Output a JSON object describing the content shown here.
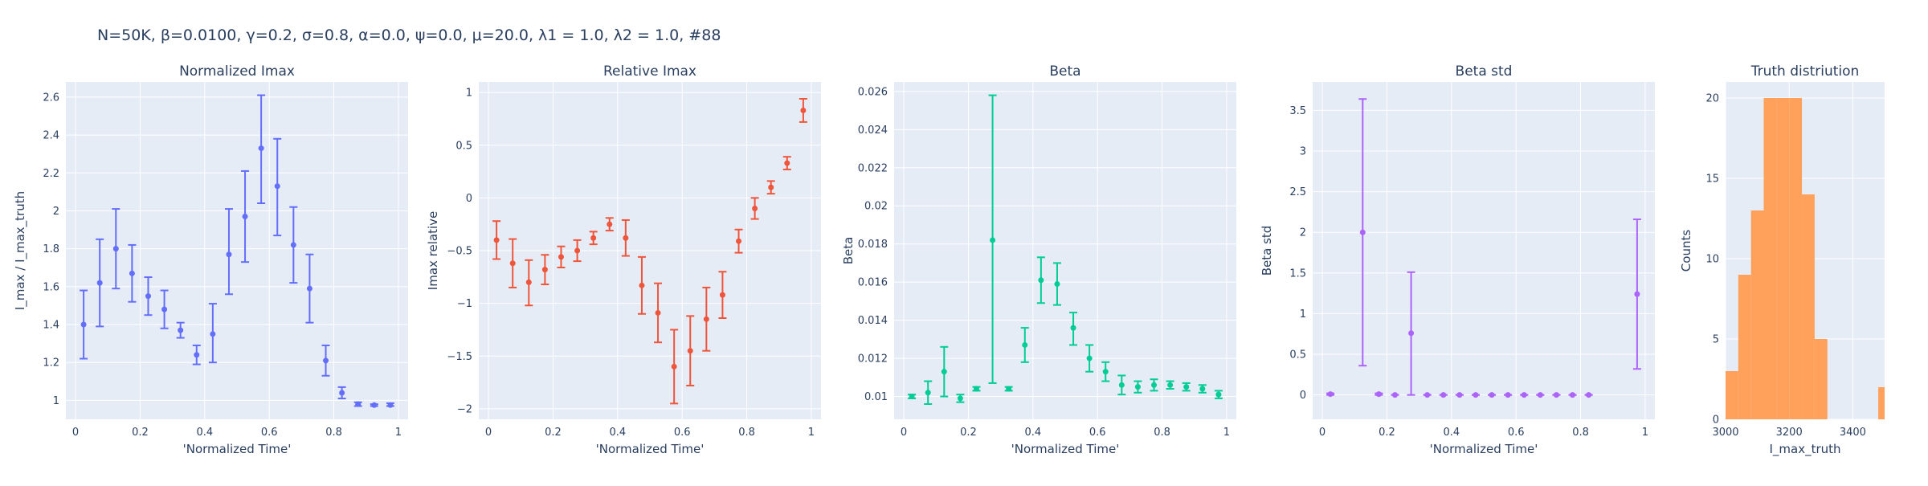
{
  "suptitle": "N=50K, β=0.0100, γ=0.2, σ=0.8,  α=0.0, ψ=0.0, μ=20.0, λ1 = 1.0, λ2 = 1.0, #88",
  "chart_data": [
    {
      "type": "scatter",
      "title": "Normalized Imax",
      "xlabel": "'Normalized Time'",
      "ylabel": "I_max / I_max_truth",
      "color": "#636efa",
      "xlim": [
        -0.03,
        1.03
      ],
      "ylim": [
        0.9,
        2.68
      ],
      "xticks": [
        0,
        0.2,
        0.4,
        0.6,
        0.8,
        1
      ],
      "xtick_labels": [
        "0",
        "0.2",
        "0.4",
        "0.6",
        "0.8",
        "1"
      ],
      "yticks": [
        1,
        1.2,
        1.4,
        1.6,
        1.8,
        2,
        2.2,
        2.4,
        2.6
      ],
      "ytick_labels": [
        "1",
        "1.2",
        "1.4",
        "1.6",
        "1.8",
        "2",
        "2.2",
        "2.4",
        "2.6"
      ],
      "x": [
        0.025,
        0.075,
        0.125,
        0.175,
        0.225,
        0.275,
        0.325,
        0.375,
        0.425,
        0.475,
        0.525,
        0.575,
        0.625,
        0.675,
        0.725,
        0.775,
        0.825,
        0.875,
        0.925,
        0.975
      ],
      "y": [
        1.4,
        1.62,
        1.8,
        1.67,
        1.55,
        1.48,
        1.37,
        1.24,
        1.35,
        1.77,
        1.97,
        2.33,
        2.13,
        1.82,
        1.59,
        1.21,
        1.04,
        0.98,
        0.975,
        0.975
      ],
      "err_low": [
        1.22,
        1.39,
        1.59,
        1.52,
        1.45,
        1.38,
        1.33,
        1.19,
        1.2,
        1.56,
        1.73,
        2.04,
        1.87,
        1.62,
        1.41,
        1.13,
        1.01,
        0.97,
        0.97,
        0.97
      ],
      "err_high": [
        1.58,
        1.85,
        2.01,
        1.82,
        1.65,
        1.58,
        1.41,
        1.29,
        1.51,
        2.01,
        2.21,
        2.61,
        2.38,
        2.02,
        1.77,
        1.29,
        1.07,
        0.99,
        0.98,
        0.985
      ]
    },
    {
      "type": "scatter",
      "title": "Relative Imax",
      "xlabel": "'Normalized Time'",
      "ylabel": "Imax relative",
      "color": "#ef553b",
      "xlim": [
        -0.03,
        1.03
      ],
      "ylim": [
        -2.1,
        1.1
      ],
      "xticks": [
        0,
        0.2,
        0.4,
        0.6,
        0.8,
        1
      ],
      "xtick_labels": [
        "0",
        "0.2",
        "0.4",
        "0.6",
        "0.8",
        "1"
      ],
      "yticks": [
        -2,
        -1.5,
        -1,
        -0.5,
        0,
        0.5,
        1
      ],
      "ytick_labels": [
        "−2",
        "−1.5",
        "−1",
        "−0.5",
        "0",
        "0.5",
        "1"
      ],
      "x": [
        0.025,
        0.075,
        0.125,
        0.175,
        0.225,
        0.275,
        0.325,
        0.375,
        0.425,
        0.475,
        0.525,
        0.575,
        0.625,
        0.675,
        0.725,
        0.775,
        0.825,
        0.875,
        0.925,
        0.975
      ],
      "y": [
        -0.4,
        -0.62,
        -0.8,
        -0.68,
        -0.56,
        -0.5,
        -0.38,
        -0.25,
        -0.38,
        -0.83,
        -1.09,
        -1.6,
        -1.45,
        -1.15,
        -0.92,
        -0.41,
        -0.1,
        0.1,
        0.33,
        0.83
      ],
      "err_low": [
        -0.58,
        -0.85,
        -1.02,
        -0.82,
        -0.66,
        -0.6,
        -0.44,
        -0.31,
        -0.55,
        -1.1,
        -1.37,
        -1.95,
        -1.78,
        -1.45,
        -1.14,
        -0.52,
        -0.2,
        0.04,
        0.27,
        0.72
      ],
      "err_high": [
        -0.22,
        -0.39,
        -0.59,
        -0.54,
        -0.46,
        -0.4,
        -0.32,
        -0.19,
        -0.21,
        -0.56,
        -0.81,
        -1.25,
        -1.12,
        -0.85,
        -0.7,
        -0.3,
        0.0,
        0.16,
        0.39,
        0.94
      ]
    },
    {
      "type": "scatter",
      "title": "Beta",
      "xlabel": "'Normalized Time'",
      "ylabel": "Beta",
      "color": "#00cc96",
      "xlim": [
        -0.03,
        1.03
      ],
      "ylim": [
        0.0088,
        0.0265
      ],
      "xticks": [
        0,
        0.2,
        0.4,
        0.6,
        0.8,
        1
      ],
      "xtick_labels": [
        "0",
        "0.2",
        "0.4",
        "0.6",
        "0.8",
        "1"
      ],
      "yticks": [
        0.01,
        0.012,
        0.014,
        0.016,
        0.018,
        0.02,
        0.022,
        0.024,
        0.026
      ],
      "ytick_labels": [
        "0.01",
        "0.012",
        "0.014",
        "0.016",
        "0.018",
        "0.02",
        "0.022",
        "0.024",
        "0.026"
      ],
      "x": [
        0.025,
        0.075,
        0.125,
        0.175,
        0.225,
        0.275,
        0.325,
        0.375,
        0.425,
        0.475,
        0.525,
        0.575,
        0.625,
        0.675,
        0.725,
        0.775,
        0.825,
        0.875,
        0.925,
        0.975
      ],
      "y": [
        0.01,
        0.0102,
        0.0113,
        0.0099,
        0.0104,
        0.0182,
        0.0104,
        0.0127,
        0.0161,
        0.0159,
        0.0136,
        0.012,
        0.0113,
        0.0106,
        0.0105,
        0.0106,
        0.0106,
        0.0105,
        0.0104,
        0.0101
      ],
      "err_low": [
        0.0099,
        0.0096,
        0.01,
        0.0097,
        0.0103,
        0.0107,
        0.0103,
        0.0118,
        0.0149,
        0.0148,
        0.0127,
        0.0113,
        0.0108,
        0.0101,
        0.0102,
        0.0103,
        0.0104,
        0.0103,
        0.0102,
        0.0099
      ],
      "err_high": [
        0.0101,
        0.0108,
        0.0126,
        0.0101,
        0.0105,
        0.0258,
        0.0105,
        0.0136,
        0.0173,
        0.017,
        0.0144,
        0.0127,
        0.0118,
        0.0111,
        0.0108,
        0.0109,
        0.0108,
        0.0107,
        0.0106,
        0.0103
      ]
    },
    {
      "type": "scatter",
      "title": "Beta std",
      "xlabel": "'Normalized Time'",
      "ylabel": "Beta std",
      "color": "#ab63fa",
      "xlim": [
        -0.03,
        1.03
      ],
      "ylim": [
        -0.3,
        3.85
      ],
      "xticks": [
        0,
        0.2,
        0.4,
        0.6,
        0.8,
        1
      ],
      "xtick_labels": [
        "0",
        "0.2",
        "0.4",
        "0.6",
        "0.8",
        "1"
      ],
      "yticks": [
        0,
        0.5,
        1,
        1.5,
        2,
        2.5,
        3,
        3.5
      ],
      "ytick_labels": [
        "0",
        "0.5",
        "1",
        "1.5",
        "2",
        "2.5",
        "3",
        "3.5"
      ],
      "x": [
        0.025,
        0.125,
        0.175,
        0.225,
        0.275,
        0.325,
        0.375,
        0.425,
        0.475,
        0.525,
        0.575,
        0.625,
        0.675,
        0.725,
        0.775,
        0.825,
        0.975
      ],
      "y": [
        0.01,
        2.0,
        0.01,
        0.0,
        0.76,
        0.0,
        0.0,
        0.0,
        0.0,
        0.0,
        0.0,
        0.0,
        0.0,
        0.0,
        0.0,
        0.0,
        1.24
      ],
      "err_low": [
        0.0,
        0.36,
        0.0,
        0.0,
        0.0,
        0.0,
        0.0,
        0.0,
        0.0,
        0.0,
        0.0,
        0.0,
        0.0,
        0.0,
        0.0,
        0.0,
        0.32
      ],
      "err_high": [
        0.02,
        3.64,
        0.02,
        0.0,
        1.51,
        0.0,
        0.0,
        0.0,
        0.0,
        0.0,
        0.0,
        0.0,
        0.0,
        0.0,
        0.0,
        0.0,
        2.16
      ]
    },
    {
      "type": "bar",
      "title": "Truth distriution",
      "xlabel": "I_max_truth",
      "ylabel": "Counts",
      "color": "#ffa15a",
      "xlim": [
        3000,
        3500
      ],
      "ylim": [
        0,
        21
      ],
      "xticks": [
        3000,
        3200,
        3400
      ],
      "xtick_labels": [
        "3000",
        "3200",
        "3400"
      ],
      "yticks": [
        0,
        5,
        10,
        15,
        20
      ],
      "ytick_labels": [
        "0",
        "5",
        "10",
        "15",
        "20"
      ],
      "bin_edges": [
        3000,
        3040,
        3080,
        3120,
        3160,
        3200,
        3240,
        3280,
        3320,
        3360,
        3400,
        3440,
        3480,
        3520
      ],
      "values": [
        3,
        9,
        13,
        20,
        20,
        20,
        14,
        5,
        0,
        0,
        0,
        0,
        2
      ]
    }
  ]
}
